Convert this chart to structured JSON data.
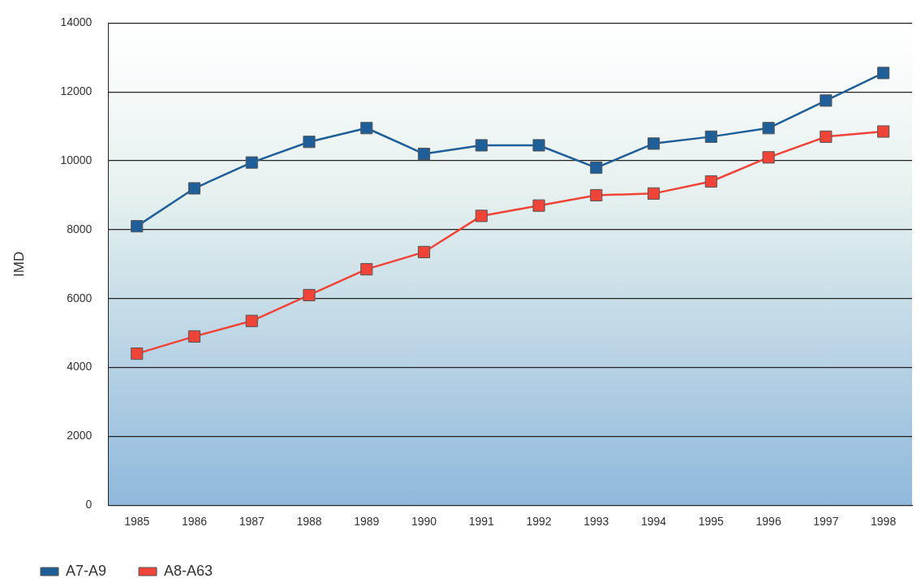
{
  "chart_data": {
    "type": "line",
    "ylabel": "IMD",
    "categories": [
      "1985",
      "1986",
      "1987",
      "1988",
      "1989",
      "1990",
      "1991",
      "1992",
      "1993",
      "1994",
      "1995",
      "1996",
      "1997",
      "1998"
    ],
    "series": [
      {
        "name": "A7-A9",
        "color": "#1f5f99",
        "values": [
          8100,
          9200,
          9950,
          10550,
          10950,
          10200,
          10450,
          10450,
          9800,
          10500,
          10700,
          10950,
          11750,
          12550
        ]
      },
      {
        "name": "A8-A63",
        "color": "#f04438",
        "values": [
          4400,
          4900,
          5350,
          6100,
          6850,
          7350,
          8400,
          8700,
          9000,
          9050,
          9400,
          10100,
          10700,
          10850
        ]
      }
    ],
    "ylim": [
      0,
      14000
    ],
    "yticks": [
      0,
      2000,
      4000,
      6000,
      8000,
      10000,
      12000,
      14000
    ],
    "grid": "y",
    "legend": "bottom left",
    "marker": "square",
    "line_style": "solid"
  }
}
